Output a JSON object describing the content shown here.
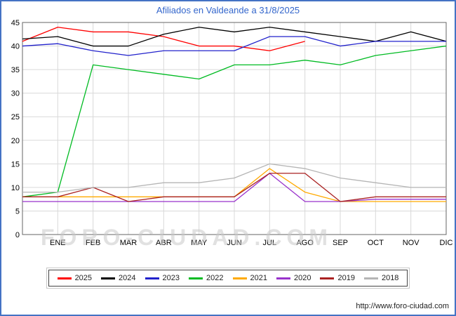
{
  "title": "Afiliados en Valdeande a 31/8/2025",
  "watermark": "FORO-CIUDAD.COM",
  "footer": {
    "url_label": "http://www.foro-ciudad.com"
  },
  "chart_data": {
    "type": "line",
    "title": "Afiliados en Valdeande a 31/8/2025",
    "x_labels": [
      "ENE",
      "FEB",
      "MAR",
      "ABR",
      "MAY",
      "JUN",
      "JUL",
      "AGO",
      "SEP",
      "OCT",
      "NOV",
      "DIC"
    ],
    "ylim": [
      0,
      45
    ],
    "ytick_step": 5,
    "grid": true,
    "legend_position": "bottom",
    "note": "values[0] = value at left plot edge, values[1..12] = ENE..DIC; null = no data yet",
    "series": [
      {
        "name": "2025",
        "color": "#ff0000",
        "values": [
          41,
          44,
          43,
          43,
          42,
          40,
          40,
          39,
          41,
          null,
          null,
          null,
          null
        ]
      },
      {
        "name": "2024",
        "color": "#000000",
        "values": [
          41.5,
          42,
          40,
          40,
          42.5,
          44,
          43,
          44,
          43,
          42,
          41,
          43,
          41
        ]
      },
      {
        "name": "2023",
        "color": "#2222cc",
        "values": [
          40,
          40.5,
          39,
          38,
          39,
          39,
          39,
          42,
          42,
          40,
          41,
          41,
          41
        ]
      },
      {
        "name": "2022",
        "color": "#00bb22",
        "values": [
          8,
          9,
          36,
          35,
          34,
          33,
          36,
          36,
          37,
          36,
          38,
          39,
          40
        ]
      },
      {
        "name": "2021",
        "color": "#ffaa00",
        "values": [
          8,
          8,
          8,
          8,
          8,
          8,
          8,
          14,
          9,
          7,
          7,
          7,
          7
        ]
      },
      {
        "name": "2020",
        "color": "#9933cc",
        "values": [
          7,
          7,
          7,
          7,
          7,
          7,
          7,
          13,
          7,
          7,
          7.5,
          7.5,
          7.5
        ]
      },
      {
        "name": "2019",
        "color": "#aa2222",
        "values": [
          8,
          8,
          10,
          7,
          8,
          8,
          8,
          13,
          13,
          7,
          8,
          8,
          8
        ]
      },
      {
        "name": "2018",
        "color": "#b5b5b5",
        "values": [
          9,
          9,
          10,
          10,
          11,
          11,
          12,
          15,
          14,
          12,
          11,
          10,
          10
        ]
      }
    ]
  }
}
